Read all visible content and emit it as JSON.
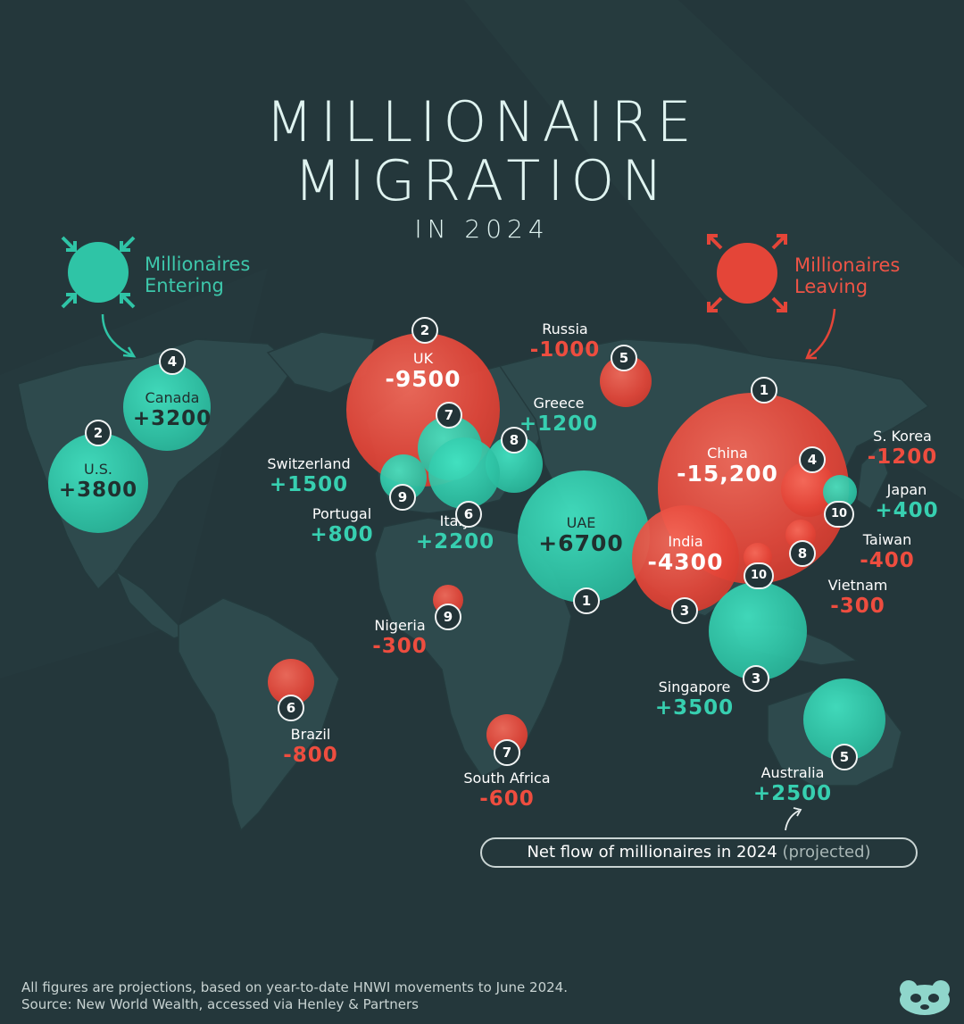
{
  "title": {
    "line1": "MILLIONAIRE",
    "line2": "MIGRATION",
    "subtitle": "IN 2024"
  },
  "legend": {
    "entering": "Millionaires Entering",
    "leaving": "Millionaires Leaving",
    "colors": {
      "entering": "#2fc4a6",
      "leaving": "#e44538"
    }
  },
  "countries": [
    {
      "name": "U.S.",
      "value": "+3800",
      "rank": "2",
      "type": "enter",
      "net": 3800
    },
    {
      "name": "Canada",
      "value": "+3200",
      "rank": "4",
      "type": "enter",
      "net": 3200
    },
    {
      "name": "UK",
      "value": "-9500",
      "rank": "2",
      "type": "leave",
      "net": -9500
    },
    {
      "name": "Russia",
      "value": "-1000",
      "rank": "5",
      "type": "leave",
      "net": -1000
    },
    {
      "name": "Greece",
      "value": "+1200",
      "rank": "8",
      "type": "enter",
      "net": 1200
    },
    {
      "name": "Switzerland",
      "value": "+1500",
      "rank": "7",
      "type": "enter",
      "net": 1500
    },
    {
      "name": "Portugal",
      "value": "+800",
      "rank": "9",
      "type": "enter",
      "net": 800
    },
    {
      "name": "Italy",
      "value": "+2200",
      "rank": "6",
      "type": "enter",
      "net": 2200
    },
    {
      "name": "UAE",
      "value": "+6700",
      "rank": "1",
      "type": "enter",
      "net": 6700
    },
    {
      "name": "China",
      "value": "-15,200",
      "rank": "1",
      "type": "leave",
      "net": -15200
    },
    {
      "name": "S. Korea",
      "value": "-1200",
      "rank": "4",
      "type": "leave",
      "net": -1200
    },
    {
      "name": "Japan",
      "value": "+400",
      "rank": "10",
      "type": "enter",
      "net": 400
    },
    {
      "name": "Taiwan",
      "value": "-400",
      "rank": "8",
      "type": "leave",
      "net": -400
    },
    {
      "name": "Vietnam",
      "value": "-300",
      "rank": "10",
      "type": "leave",
      "net": -300
    },
    {
      "name": "India",
      "value": "-4300",
      "rank": "3",
      "type": "leave",
      "net": -4300
    },
    {
      "name": "Singapore",
      "value": "+3500",
      "rank": "3",
      "type": "enter",
      "net": 3500
    },
    {
      "name": "Australia",
      "value": "+2500",
      "rank": "5",
      "type": "enter",
      "net": 2500
    },
    {
      "name": "Nigeria",
      "value": "-300",
      "rank": "9",
      "type": "leave",
      "net": -300
    },
    {
      "name": "Brazil",
      "value": "-800",
      "rank": "6",
      "type": "leave",
      "net": -800
    },
    {
      "name": "South Africa",
      "value": "-600",
      "rank": "7",
      "type": "leave",
      "net": -600
    }
  ],
  "net_flow_note": {
    "main": "Net flow of millionaires in 2024",
    "muted": "(projected)"
  },
  "footnote": {
    "line1": "All figures are projections, based on year-to-date HNWI movements to June 2024.",
    "line2": "Source: New World Wealth, accessed via Henley & Partners"
  }
}
